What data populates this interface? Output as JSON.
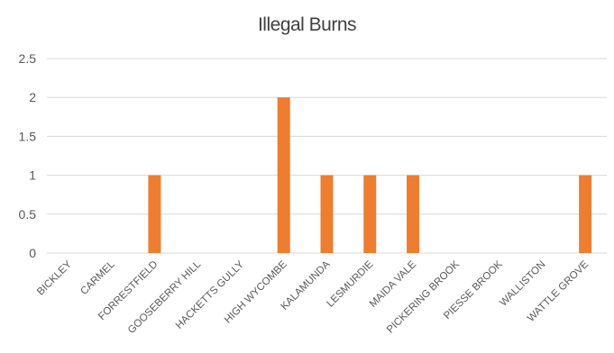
{
  "chart_data": {
    "type": "bar",
    "title": "Illegal Burns",
    "xlabel": "",
    "ylabel": "",
    "categories": [
      "BICKLEY",
      "CARMEL",
      "FORRESTFIELD",
      "GOOSEBERRY HILL",
      "HACKETTS GULLY",
      "HIGH WYCOMBE",
      "KALAMUNDA",
      "LESMURDIE",
      "MAIDA VALE",
      "PICKERING BROOK",
      "PIESSE BROOK",
      "WALLISTON",
      "WATTLE GROVE"
    ],
    "values": [
      0,
      0,
      1,
      0,
      0,
      2,
      1,
      1,
      1,
      0,
      0,
      0,
      1
    ],
    "ylim": [
      0,
      2.5
    ],
    "yticks": [
      "0",
      "0.5",
      "1",
      "1.5",
      "2",
      "2.5"
    ],
    "grid": true,
    "legend": "none",
    "bar_color": "#ED7D31",
    "grid_color": "#D9D9D9",
    "text_color": "#595959"
  }
}
